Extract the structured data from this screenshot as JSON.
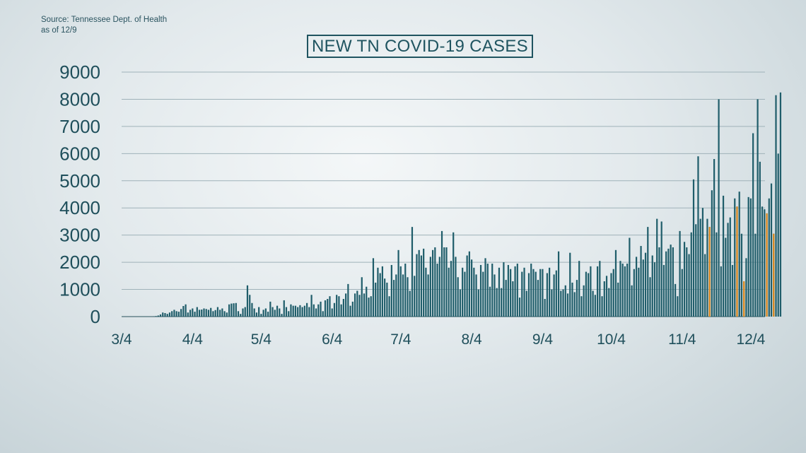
{
  "source": {
    "line1": "Source: Tennessee Dept. of Health",
    "line2": "as of 12/9"
  },
  "colors": {
    "bar": "#1f5d6a",
    "highlight": "#e08a1e",
    "grid": "#9fb2b9",
    "text": "#1f4f5b"
  },
  "chart_data": {
    "type": "bar",
    "title": "NEW TN COVID-19 CASES",
    "xlabel": "",
    "ylabel": "",
    "ylim": [
      0,
      9000
    ],
    "yticks": [
      0,
      1000,
      2000,
      3000,
      4000,
      5000,
      6000,
      7000,
      8000,
      9000
    ],
    "x_tick_labels": [
      {
        "label": "3/4",
        "day": 0
      },
      {
        "label": "4/4",
        "day": 31
      },
      {
        "label": "5/4",
        "day": 61
      },
      {
        "label": "6/4",
        "day": 92
      },
      {
        "label": "7/4",
        "day": 122
      },
      {
        "label": "8/4",
        "day": 153
      },
      {
        "label": "9/4",
        "day": 184
      },
      {
        "label": "10/4",
        "day": 214
      },
      {
        "label": "11/4",
        "day": 245
      },
      {
        "label": "12/4",
        "day": 275
      }
    ],
    "grid": true,
    "start_date": "3/4",
    "daily_values": [
      0,
      0,
      0,
      0,
      0,
      0,
      0,
      0,
      0,
      0,
      0,
      0,
      0,
      0,
      5,
      20,
      40,
      80,
      150,
      130,
      100,
      150,
      200,
      250,
      200,
      180,
      280,
      390,
      450,
      150,
      250,
      300,
      180,
      350,
      250,
      260,
      300,
      280,
      250,
      320,
      200,
      240,
      350,
      250,
      300,
      200,
      150,
      450,
      480,
      490,
      500,
      200,
      100,
      300,
      350,
      1150,
      800,
      500,
      300,
      150,
      350,
      100,
      250,
      300,
      180,
      550,
      350,
      250,
      400,
      300,
      100,
      600,
      350,
      200,
      450,
      400,
      400,
      350,
      420,
      350,
      400,
      500,
      350,
      800,
      450,
      300,
      450,
      550,
      200,
      600,
      650,
      750,
      300,
      500,
      800,
      750,
      450,
      650,
      850,
      1200,
      400,
      550,
      850,
      950,
      800,
      1450,
      850,
      1100,
      700,
      750,
      2150,
      1250,
      1800,
      1600,
      1850,
      1400,
      1250,
      750,
      1900,
      1350,
      1550,
      2450,
      1850,
      1550,
      1950,
      1450,
      950,
      3300,
      1500,
      2300,
      2450,
      2250,
      2500,
      1800,
      1550,
      2200,
      2450,
      2550,
      1950,
      2200,
      3150,
      2550,
      2550,
      1800,
      2050,
      3100,
      2200,
      1450,
      1000,
      1800,
      1650,
      2250,
      2400,
      2100,
      1800,
      1550,
      1000,
      1900,
      1650,
      2150,
      1950,
      1100,
      1950,
      1550,
      1050,
      1800,
      1050,
      2000,
      1350,
      1900,
      1750,
      1300,
      1850,
      1950,
      700,
      1650,
      1800,
      950,
      1600,
      1950,
      1750,
      1650,
      1350,
      1750,
      1750,
      650,
      1600,
      1800,
      1000,
      1550,
      1700,
      2400,
      950,
      1000,
      1150,
      850,
      2350,
      1250,
      900,
      1350,
      2050,
      750,
      1150,
      1650,
      1600,
      1850,
      950,
      800,
      1850,
      2050,
      750,
      1300,
      1500,
      1050,
      1600,
      1750,
      2450,
      1250,
      2050,
      1950,
      1850,
      1950,
      2900,
      1150,
      1750,
      2200,
      1800,
      2600,
      2100,
      2350,
      3300,
      1450,
      2250,
      2000,
      3600,
      2550,
      3500,
      1900,
      2400,
      2500,
      2650,
      2550,
      1200,
      750,
      3150,
      1750,
      2750,
      2550,
      2300,
      3100,
      5050,
      3400,
      5900,
      3600,
      4000,
      2300,
      3600,
      3300,
      4650,
      5800,
      3100,
      8000,
      1850,
      4450,
      2900,
      3450,
      3650,
      1900,
      4350,
      4050,
      4600,
      3050,
      1300,
      2150,
      4400,
      4350,
      6750,
      3050,
      8000,
      5700,
      4050,
      3950,
      3800,
      4350,
      4900,
      3050,
      8150,
      6000,
      8250
    ],
    "highlight_days": [
      257,
      269,
      272,
      282,
      285
    ]
  }
}
